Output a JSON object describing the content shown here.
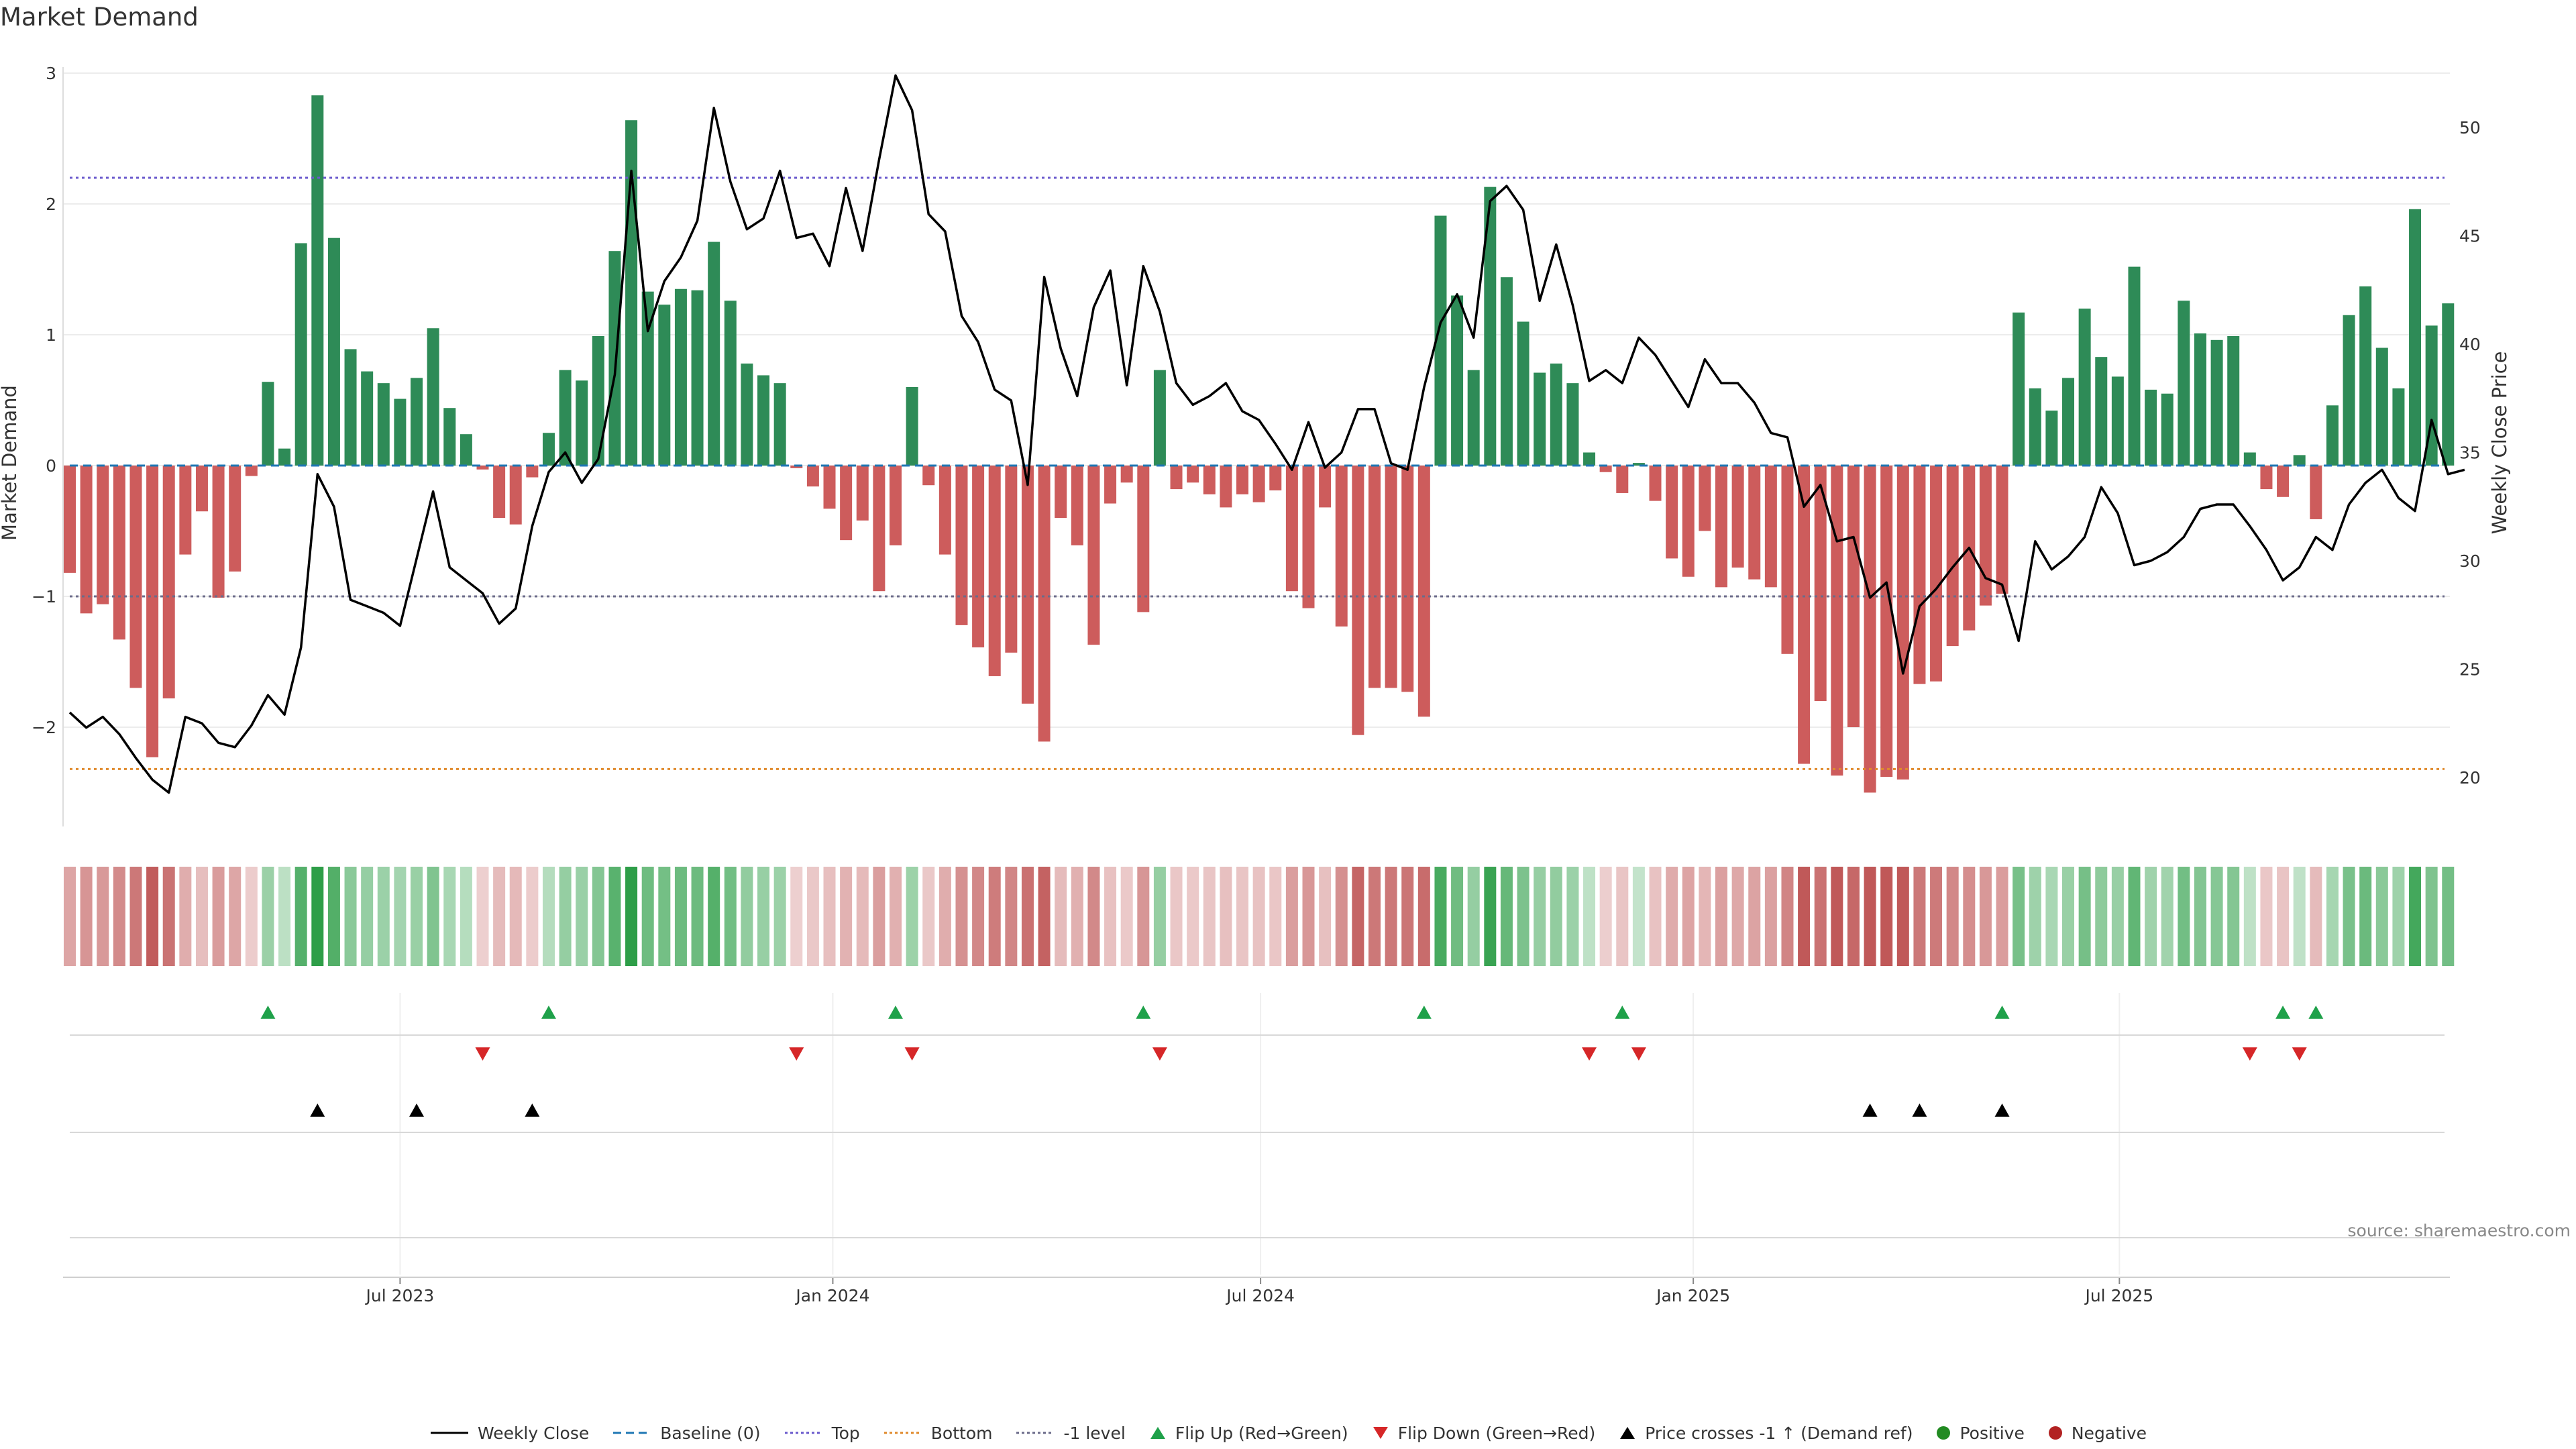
{
  "chart_data": {
    "type": "bar",
    "title": "Market Demand",
    "ylabel": "Market Demand",
    "y2label": "Weekly Close Price",
    "ylim": [
      -2.8,
      3.0
    ],
    "y2lim": [
      17.7,
      53.9
    ],
    "yticks": [
      3,
      2,
      1,
      0,
      -1,
      -2
    ],
    "ytick_labels": [
      "3",
      "2",
      "1",
      "0",
      "−1",
      "−2"
    ],
    "y2ticks": [
      50,
      45,
      40,
      35,
      30,
      25,
      20
    ],
    "y2tick_labels": [
      "50",
      "45",
      "40",
      "35",
      "30",
      "25",
      "20"
    ],
    "xtick_labels": [
      "Jul 2023",
      "Jan 2024",
      "Jul 2024",
      "Jan 2025",
      "Jul 2025"
    ],
    "xtick_week_index": [
      20.0,
      46.2,
      72.1,
      98.3,
      124.1
    ],
    "reference_lines": {
      "top": 2.2,
      "bottom": -2.32,
      "minus_one": -1.0,
      "baseline": 0
    },
    "demand": [
      -0.82,
      -1.13,
      -1.06,
      -1.33,
      -1.7,
      -2.23,
      -1.78,
      -0.68,
      -0.35,
      -1.01,
      -0.81,
      -0.08,
      0.64,
      0.13,
      1.7,
      2.83,
      1.74,
      0.89,
      0.72,
      0.63,
      0.51,
      0.67,
      1.05,
      0.44,
      0.24,
      -0.03,
      -0.4,
      -0.45,
      -0.09,
      0.25,
      0.73,
      0.65,
      0.99,
      1.64,
      2.64,
      1.33,
      1.23,
      1.35,
      1.34,
      1.71,
      1.26,
      0.78,
      0.69,
      0.63,
      -0.02,
      -0.16,
      -0.33,
      -0.57,
      -0.42,
      -0.96,
      -0.61,
      0.6,
      -0.15,
      -0.68,
      -1.22,
      -1.39,
      -1.61,
      -1.43,
      -1.82,
      -2.11,
      -0.4,
      -0.61,
      -1.37,
      -0.29,
      -0.13,
      -1.12,
      0.73,
      -0.18,
      -0.13,
      -0.22,
      -0.32,
      -0.22,
      -0.28,
      -0.19,
      -0.96,
      -1.09,
      -0.32,
      -1.23,
      -2.06,
      -1.7,
      -1.7,
      -1.73,
      -1.92,
      1.91,
      1.3,
      0.73,
      2.13,
      1.44,
      1.1,
      0.71,
      0.78,
      0.63,
      0.1,
      -0.05,
      -0.21,
      0.02,
      -0.27,
      -0.71,
      -0.85,
      -0.5,
      -0.93,
      -0.78,
      -0.87,
      -0.93,
      -1.44,
      -2.28,
      -1.8,
      -2.37,
      -2.0,
      -2.5,
      -2.38,
      -2.4,
      -1.67,
      -1.65,
      -1.38,
      -1.26,
      -1.07,
      -0.98,
      1.17,
      0.59,
      0.42,
      0.67,
      1.2,
      0.83,
      0.68,
      1.52,
      0.58,
      0.55,
      1.26,
      1.01,
      0.96,
      0.99,
      0.1,
      -0.18,
      -0.24,
      0.08,
      -0.41,
      0.46,
      1.15,
      1.37,
      0.9,
      0.59,
      1.96,
      1.07,
      1.24
    ],
    "weekly_close": [
      23.0,
      22.3,
      22.8,
      22.0,
      20.9,
      19.9,
      19.3,
      22.8,
      22.5,
      21.6,
      21.4,
      22.4,
      23.8,
      22.9,
      26.0,
      34.0,
      32.5,
      28.2,
      27.9,
      27.6,
      27.0,
      30.1,
      33.2,
      29.7,
      29.1,
      28.5,
      27.1,
      27.8,
      31.6,
      34.1,
      35.0,
      33.6,
      34.7,
      38.6,
      48.0,
      40.6,
      42.9,
      44.0,
      45.7,
      50.9,
      47.5,
      45.3,
      45.8,
      48.0,
      44.9,
      45.1,
      43.6,
      47.2,
      44.3,
      48.5,
      52.4,
      50.8,
      46.0,
      45.2,
      41.3,
      40.1,
      37.9,
      37.4,
      33.5,
      43.1,
      39.8,
      37.6,
      41.7,
      43.4,
      38.1,
      43.6,
      41.5,
      38.2,
      37.2,
      37.6,
      38.2,
      36.9,
      36.5,
      35.4,
      34.2,
      36.4,
      34.3,
      35.0,
      37.0,
      37.0,
      34.5,
      34.2,
      38.0,
      41.0,
      42.3,
      40.3,
      46.6,
      47.3,
      46.2,
      42.0,
      44.6,
      41.8,
      38.3,
      38.8,
      38.2,
      40.3,
      39.5,
      38.3,
      37.1,
      39.3,
      38.2,
      38.2,
      37.3,
      35.9,
      35.7,
      32.5,
      33.5,
      30.9,
      31.1,
      28.3,
      29.0,
      24.8,
      27.9,
      28.7,
      29.7,
      30.6,
      29.2,
      28.9,
      26.3,
      30.9,
      29.6,
      30.2,
      31.1,
      33.4,
      32.2,
      29.8,
      30.0,
      30.4,
      31.1,
      32.4,
      32.6,
      32.6,
      31.6,
      30.5,
      29.1,
      29.7,
      31.1,
      30.5,
      32.6,
      33.6,
      34.2,
      32.9,
      32.3,
      36.5,
      34.0,
      34.2
    ],
    "flip_up_weeks": [
      12,
      29,
      50,
      65,
      82,
      94,
      117,
      134,
      136
    ],
    "flip_down_weeks": [
      25,
      44,
      51,
      66,
      92,
      95,
      132,
      135
    ],
    "price_cross_weeks": [
      15,
      21,
      28,
      109,
      112,
      117
    ],
    "colors": {
      "positive_bar": "#2e8b57",
      "negative_bar": "#cd5c5c",
      "price_line": "#000000",
      "baseline": "#1f77b4",
      "top_line": "#6a5acd",
      "bottom_line": "#e08a2c",
      "minus_one_line": "#6b6b8a",
      "flip_up": "#1fa14a",
      "flip_down": "#d62728",
      "price_cross": "#000000",
      "positive_dot": "#228b22",
      "negative_dot": "#b22222"
    },
    "legend": [
      {
        "label": "Weekly Close",
        "symbol": "solid-line"
      },
      {
        "label": "Baseline (0)",
        "symbol": "dashed-line"
      },
      {
        "label": "Top",
        "symbol": "dotted-line"
      },
      {
        "label": "Bottom",
        "symbol": "dotted-line"
      },
      {
        "label": "-1 level",
        "symbol": "dotted-line"
      },
      {
        "label": "Flip Up (Red→Green)",
        "symbol": "triangle-up"
      },
      {
        "label": "Flip Down (Green→Red)",
        "symbol": "triangle-down"
      },
      {
        "label": "Price crosses -1 ↑ (Demand ref)",
        "symbol": "triangle-up"
      },
      {
        "label": "Positive",
        "symbol": "dot"
      },
      {
        "label": "Negative",
        "symbol": "dot"
      }
    ],
    "source": "source: sharemaestro.com"
  }
}
